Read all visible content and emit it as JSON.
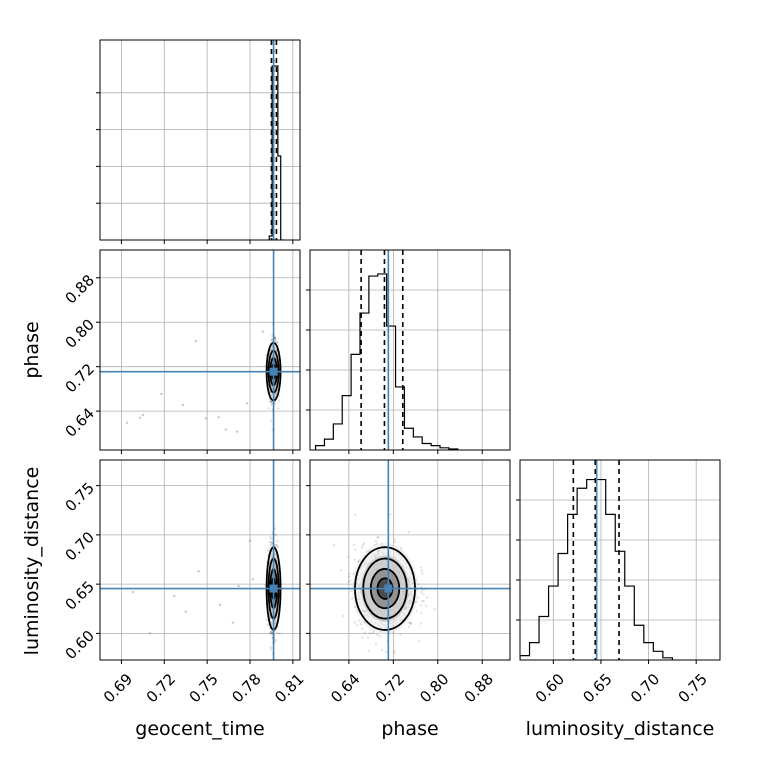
{
  "chart_data": {
    "type": "corner",
    "parameters": [
      "geocent_time",
      "phase",
      "luminosity_distance"
    ],
    "truths": {
      "geocent_time": 0.7965,
      "phase": 0.711,
      "luminosity_distance": 0.6455
    },
    "colors": {
      "truth": "#4682b4",
      "hist": "#000000",
      "grid": "#b0b0b0",
      "density": "#000000"
    },
    "grid": true,
    "panels": [
      {
        "id": "geocent_time_hist",
        "kind": "histogram",
        "param": "geocent_time",
        "row": 0,
        "col": 0,
        "xlim": [
          0.675,
          0.815
        ],
        "xticks": [
          0.69,
          0.72,
          0.75,
          0.78,
          0.81
        ],
        "bins": [
          0.7935,
          0.7955,
          0.7975,
          0.7995,
          0.8015,
          0.8035
        ],
        "counts": [
          0.02,
          0.87,
          0.87,
          0.42,
          0.0
        ],
        "ymax": 1.0,
        "quantile_lines": [
          0.795,
          0.7965,
          0.7985
        ],
        "truth": 0.7965
      },
      {
        "id": "phase_hist",
        "kind": "histogram",
        "param": "phase",
        "row": 1,
        "col": 1,
        "xlim": [
          0.57,
          0.93
        ],
        "xticks": [
          0.64,
          0.72,
          0.8,
          0.88
        ],
        "bins": [
          0.58,
          0.596,
          0.612,
          0.628,
          0.644,
          0.66,
          0.676,
          0.692,
          0.708,
          0.724,
          0.74,
          0.756,
          0.772,
          0.788,
          0.804,
          0.82,
          0.836
        ],
        "counts": [
          0.02,
          0.05,
          0.12,
          0.25,
          0.44,
          0.63,
          0.8,
          0.81,
          0.57,
          0.29,
          0.1,
          0.06,
          0.03,
          0.02,
          0.01,
          0.005
        ],
        "ymax": 0.92,
        "quantile_lines": [
          0.662,
          0.704,
          0.737
        ],
        "truth": 0.711
      },
      {
        "id": "luminosity_distance_hist",
        "kind": "histogram",
        "param": "luminosity_distance",
        "row": 2,
        "col": 2,
        "xlim": [
          0.565,
          0.775
        ],
        "xticks": [
          0.6,
          0.65,
          0.7,
          0.75
        ],
        "bins": [
          0.565,
          0.575,
          0.585,
          0.595,
          0.605,
          0.615,
          0.625,
          0.635,
          0.645,
          0.655,
          0.665,
          0.675,
          0.685,
          0.695,
          0.705,
          0.715,
          0.725
        ],
        "counts": [
          0.02,
          0.08,
          0.2,
          0.34,
          0.49,
          0.67,
          0.79,
          0.83,
          0.83,
          0.67,
          0.5,
          0.34,
          0.16,
          0.08,
          0.04,
          0.01
        ],
        "ymax": 0.92,
        "quantile_lines": [
          0.621,
          0.644,
          0.669
        ],
        "truth": 0.6455
      },
      {
        "id": "geocent_phase_density",
        "kind": "density",
        "x": "geocent_time",
        "y": "phase",
        "row": 1,
        "col": 0,
        "xlim": [
          0.675,
          0.815
        ],
        "ylim": [
          0.57,
          0.93
        ],
        "xticks": [
          0.69,
          0.72,
          0.75,
          0.78,
          0.81
        ],
        "yticks": [
          0.64,
          0.72,
          0.8,
          0.88
        ],
        "center": [
          0.7965,
          0.711
        ],
        "sigma": [
          0.0015,
          0.026
        ],
        "scatter_points": [
          [
            0.742,
            0.766
          ],
          [
            0.733,
            0.651
          ],
          [
            0.749,
            0.627
          ],
          [
            0.694,
            0.619
          ],
          [
            0.703,
            0.628
          ],
          [
            0.763,
            0.607
          ],
          [
            0.718,
            0.671
          ],
          [
            0.758,
            0.629
          ],
          [
            0.771,
            0.603
          ],
          [
            0.789,
            0.783
          ],
          [
            0.778,
            0.654
          ],
          [
            0.705,
            0.633
          ]
        ],
        "truth": [
          0.7965,
          0.711
        ]
      },
      {
        "id": "geocent_distance_density",
        "kind": "density",
        "x": "geocent_time",
        "y": "luminosity_distance",
        "row": 2,
        "col": 0,
        "xlim": [
          0.675,
          0.815
        ],
        "ylim": [
          0.573,
          0.776
        ],
        "xticks": [
          0.69,
          0.72,
          0.75,
          0.78,
          0.81
        ],
        "yticks": [
          0.6,
          0.65,
          0.7,
          0.75
        ],
        "center": [
          0.7965,
          0.6455
        ],
        "sigma": [
          0.0015,
          0.021
        ],
        "scatter_points": [
          [
            0.772,
            0.648
          ],
          [
            0.744,
            0.663
          ],
          [
            0.71,
            0.6
          ],
          [
            0.727,
            0.638
          ],
          [
            0.759,
            0.629
          ],
          [
            0.782,
            0.655
          ],
          [
            0.698,
            0.642
          ],
          [
            0.768,
            0.611
          ],
          [
            0.735,
            0.622
          ],
          [
            0.78,
            0.694
          ]
        ],
        "truth": [
          0.7965,
          0.6455
        ]
      },
      {
        "id": "phase_distance_density",
        "kind": "density",
        "x": "phase",
        "y": "luminosity_distance",
        "row": 2,
        "col": 1,
        "xlim": [
          0.57,
          0.93
        ],
        "ylim": [
          0.573,
          0.776
        ],
        "xticks": [
          0.64,
          0.72,
          0.8,
          0.88
        ],
        "yticks": [
          0.6,
          0.65,
          0.7,
          0.75
        ],
        "center": [
          0.705,
          0.6455
        ],
        "sigma": [
          0.027,
          0.021
        ],
        "scatter_points": [],
        "truth": [
          0.711,
          0.6455
        ]
      }
    ]
  }
}
